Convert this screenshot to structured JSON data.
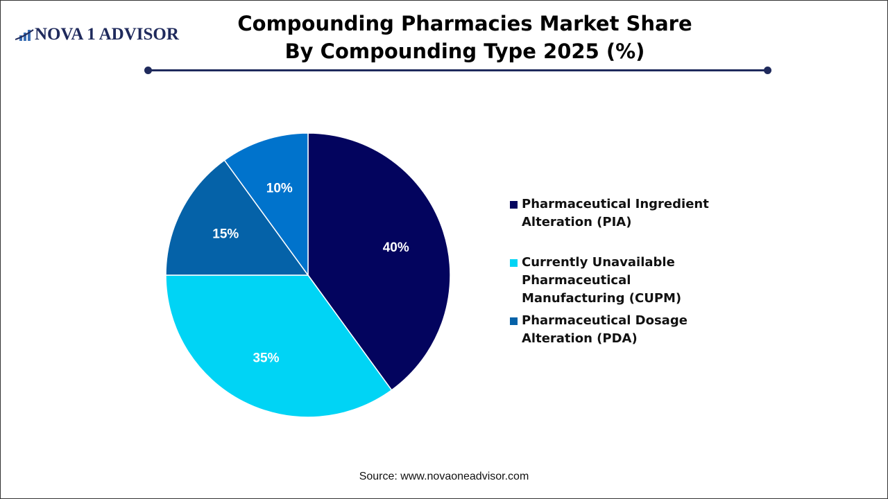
{
  "brand": {
    "logo_text": "NOVA 1 ADVISOR"
  },
  "chart_data": {
    "type": "pie",
    "title": "Compounding Pharmacies Market Share By Compounding Type 2025 (%)",
    "title_lines": [
      "Compounding Pharmacies Market Share",
      "By Compounding Type 2025 (%)"
    ],
    "slices": [
      {
        "label": "Pharmaceutical Ingredient Alteration (PIA)",
        "value": 40,
        "data_label": "40%",
        "color": "#03045E",
        "in_legend": true
      },
      {
        "label": "Currently Unavailable Pharmaceutical Manufacturing (CUPM)",
        "value": 35,
        "data_label": "35%",
        "color": "#00D4F5",
        "in_legend": true
      },
      {
        "label": "Pharmaceutical Dosage Alteration (PDA)",
        "value": 15,
        "data_label": "15%",
        "color": "#0562A8",
        "in_legend": true
      },
      {
        "label": "",
        "value": 10,
        "data_label": "10%",
        "color": "#0073CC",
        "in_legend": false
      }
    ],
    "legend_placement": "right",
    "start_angle": "top, clockwise"
  },
  "source": "Source: www.novaoneadvisor.com"
}
